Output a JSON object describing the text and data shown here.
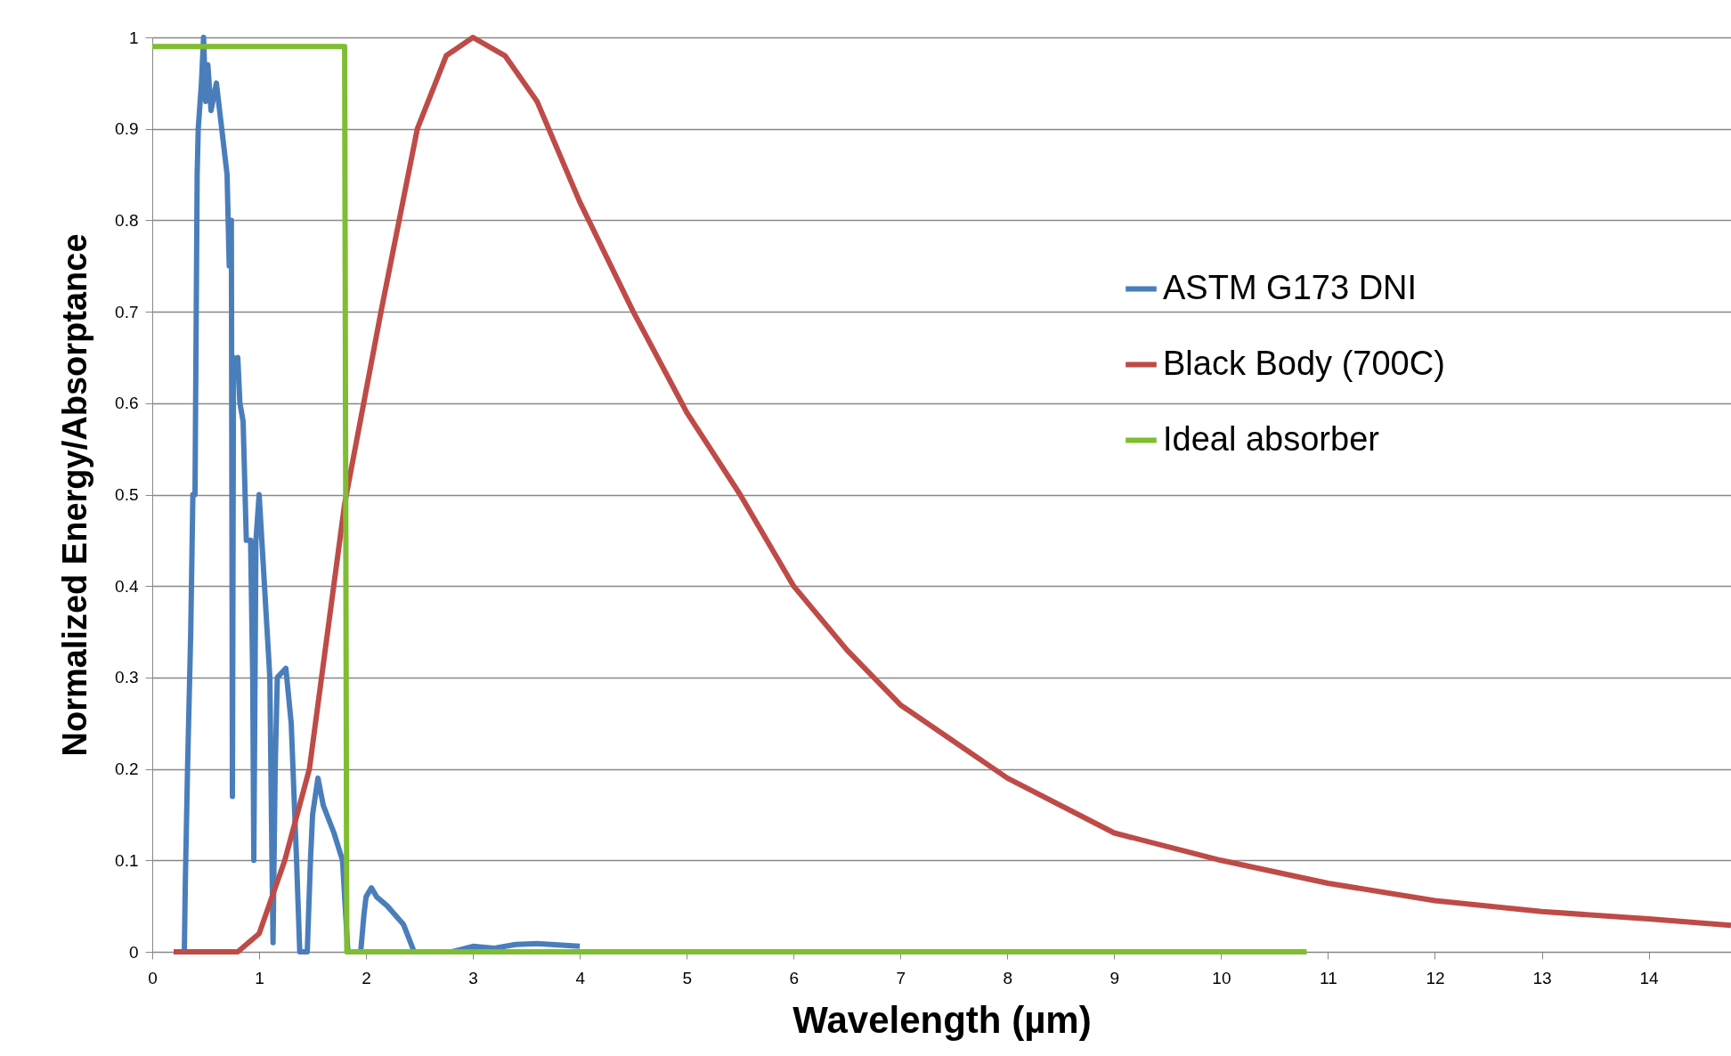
{
  "chart_data": {
    "type": "line",
    "xlabel": "Wavelength (µm)",
    "ylabel": "Normalized Energy/Absorptance",
    "xlim": [
      0,
      14.77
    ],
    "xticks": [
      0,
      1,
      2,
      3,
      4,
      5,
      6,
      7,
      8,
      9,
      10,
      11,
      12,
      13,
      14
    ],
    "ylim": [
      0,
      1
    ],
    "yticks": [
      0,
      0.1,
      0.2,
      0.3,
      0.4,
      0.5,
      0.6,
      0.7,
      0.8,
      0.9,
      1
    ],
    "grid": "y",
    "legend": "right",
    "line_style": "solid",
    "marker": "none",
    "series": [
      {
        "name": "ASTM G173 DNI",
        "color": "#4a7ebb",
        "x": [
          0.3,
          0.31,
          0.33,
          0.36,
          0.38,
          0.4,
          0.42,
          0.43,
          0.46,
          0.48,
          0.5,
          0.52,
          0.55,
          0.6,
          0.65,
          0.7,
          0.72,
          0.74,
          0.75,
          0.76,
          0.78,
          0.8,
          0.82,
          0.85,
          0.88,
          0.92,
          0.94,
          0.95,
          0.97,
          1.0,
          1.05,
          1.1,
          1.12,
          1.13,
          1.15,
          1.17,
          1.25,
          1.3,
          1.35,
          1.38,
          1.45,
          1.48,
          1.5,
          1.55,
          1.6,
          1.7,
          1.78,
          1.83,
          1.95,
          1.98,
          2.0,
          2.05,
          2.1,
          2.2,
          2.35,
          2.45,
          2.8,
          3.0,
          3.2,
          3.4,
          3.6,
          4.0
        ],
        "values": [
          0,
          0.08,
          0.2,
          0.35,
          0.5,
          0.5,
          0.85,
          0.9,
          0.95,
          1.0,
          0.93,
          0.97,
          0.92,
          0.95,
          0.9,
          0.85,
          0.75,
          0.8,
          0.17,
          0.65,
          0.63,
          0.65,
          0.6,
          0.58,
          0.45,
          0.45,
          0.3,
          0.1,
          0.45,
          0.5,
          0.4,
          0.3,
          0.1,
          0.01,
          0.2,
          0.3,
          0.31,
          0.25,
          0.1,
          0,
          0,
          0.1,
          0.15,
          0.19,
          0.16,
          0.13,
          0.1,
          0,
          0,
          0.04,
          0.06,
          0.07,
          0.06,
          0.05,
          0.03,
          0,
          0,
          0.006,
          0.004,
          0.008,
          0.009,
          0.006
        ]
      },
      {
        "name": "Black Body (700C)",
        "color": "#be4b48",
        "x": [
          0.2,
          0.8,
          1.0,
          1.24,
          1.47,
          1.8,
          2.14,
          2.48,
          2.75,
          3.0,
          3.3,
          3.6,
          4.0,
          4.5,
          5.0,
          5.5,
          6.0,
          6.5,
          7.0,
          7.5,
          8.0,
          9.0,
          10.0,
          11.0,
          12.0,
          13.0,
          14.0,
          14.77
        ],
        "values": [
          0,
          0,
          0.02,
          0.1,
          0.2,
          0.49,
          0.7,
          0.9,
          0.98,
          1.0,
          0.98,
          0.93,
          0.82,
          0.7,
          0.59,
          0.5,
          0.4,
          0.33,
          0.27,
          0.23,
          0.19,
          0.13,
          0.1,
          0.075,
          0.056,
          0.044,
          0.036,
          0.029
        ]
      },
      {
        "name": "Ideal absorber",
        "color": "#7fbd32",
        "x": [
          0,
          1.8,
          1.82,
          10.8
        ],
        "values": [
          0.99,
          0.99,
          0,
          0
        ]
      }
    ]
  }
}
